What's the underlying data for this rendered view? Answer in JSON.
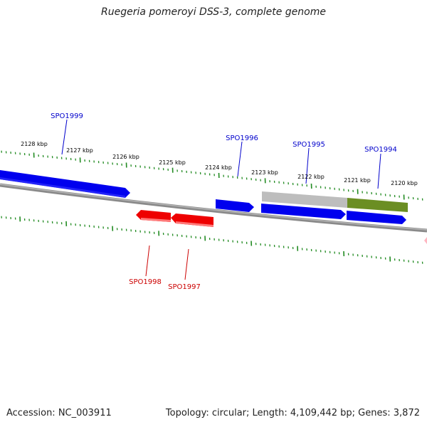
{
  "title": "Ruegeria pomeroyi DSS-3, complete genome",
  "footer": {
    "accession": "Accession: NC_003911",
    "summary": "Topology: circular; Length: 4,109,442 bp; Genes: 3,872"
  },
  "colors": {
    "forward_gene": "#0000ee",
    "reverse_gene": "#ee0000",
    "ticks": "#228b22",
    "backbone": "#808080",
    "feature_gray": "#bdbdbd",
    "feature_olive": "#6b8e23",
    "pink_marker": "#ffb6c1"
  },
  "scale_labels": [
    "2128 kbp",
    "2127 kbp",
    "2126 kbp",
    "2125 kbp",
    "2124 kbp",
    "2123 kbp",
    "2122 kbp",
    "2121 kbp",
    "2120 kbp"
  ],
  "genes": [
    {
      "name": "SPO1999",
      "strand": "forward"
    },
    {
      "name": "SPO1998",
      "strand": "reverse"
    },
    {
      "name": "SPO1997",
      "strand": "reverse"
    },
    {
      "name": "SPO1996",
      "strand": "forward"
    },
    {
      "name": "SPO1995",
      "strand": "forward"
    },
    {
      "name": "SPO1994",
      "strand": "forward"
    }
  ]
}
